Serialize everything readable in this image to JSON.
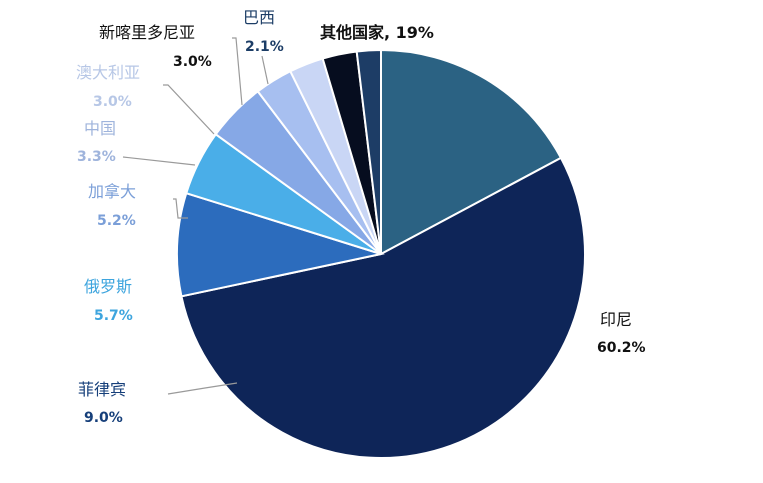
{
  "chart_data": {
    "type": "pie",
    "slices": [
      {
        "category": "其他国家",
        "value": 19,
        "label": "其他国家, 19%",
        "color": "#2b6283",
        "label_color": "#111111"
      },
      {
        "category": "印尼",
        "value": 60.2,
        "name_label": "印尼",
        "pct_label": "60.2%",
        "color": "#0e2558",
        "label_color": "#111111"
      },
      {
        "category": "菲律宾",
        "value": 9.0,
        "name_label": "菲律宾",
        "pct_label": "9.0%",
        "color": "#2c6cbd",
        "label_color": "#163f7a"
      },
      {
        "category": "俄罗斯",
        "value": 5.7,
        "name_label": "俄罗斯",
        "pct_label": "5.7%",
        "color": "#4aaee8",
        "label_color": "#3ea5de"
      },
      {
        "category": "加拿大",
        "value": 5.2,
        "name_label": "加拿大",
        "pct_label": "5.2%",
        "color": "#86a8e6",
        "label_color": "#7b9fd8"
      },
      {
        "category": "中国",
        "value": 3.3,
        "name_label": "中国",
        "pct_label": "3.3%",
        "color": "#a7bff0",
        "label_color": "#9fb4dc"
      },
      {
        "category": "澳大利亚",
        "value": 3.0,
        "name_label": "澳大利亚",
        "pct_label": "3.0%",
        "color": "#c9d6f5",
        "label_color": "#b7c7e6"
      },
      {
        "category": "新喀里多尼亚",
        "value": 3.0,
        "name_label": "新喀里多尼亚",
        "pct_label": "3.0%",
        "color": "#060d1f",
        "label_color": "#111111"
      },
      {
        "category": "巴西",
        "value": 2.1,
        "name_label": "巴西",
        "pct_label": "2.1%",
        "color": "#1d3d66",
        "label_color": "#1c3d66"
      }
    ]
  }
}
